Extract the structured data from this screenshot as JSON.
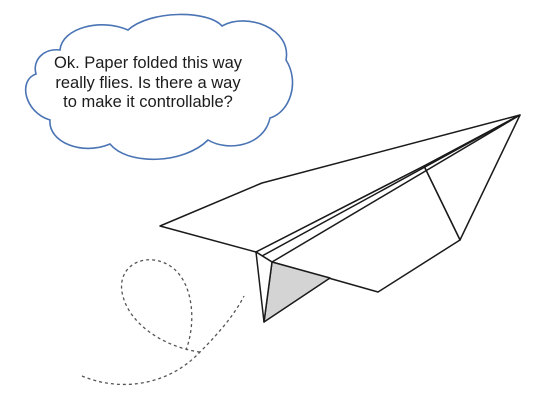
{
  "speech_bubble": {
    "lines": [
      "Ok. Paper folded this way",
      "really flies. Is there a way",
      "to make it controllable?"
    ]
  },
  "colors": {
    "bubble_outline": "#4a74b4",
    "plane_outline": "#1a1a1a",
    "plane_shade": "#d4d4d4",
    "plane_fill": "#ffffff",
    "trail": "#555555"
  }
}
